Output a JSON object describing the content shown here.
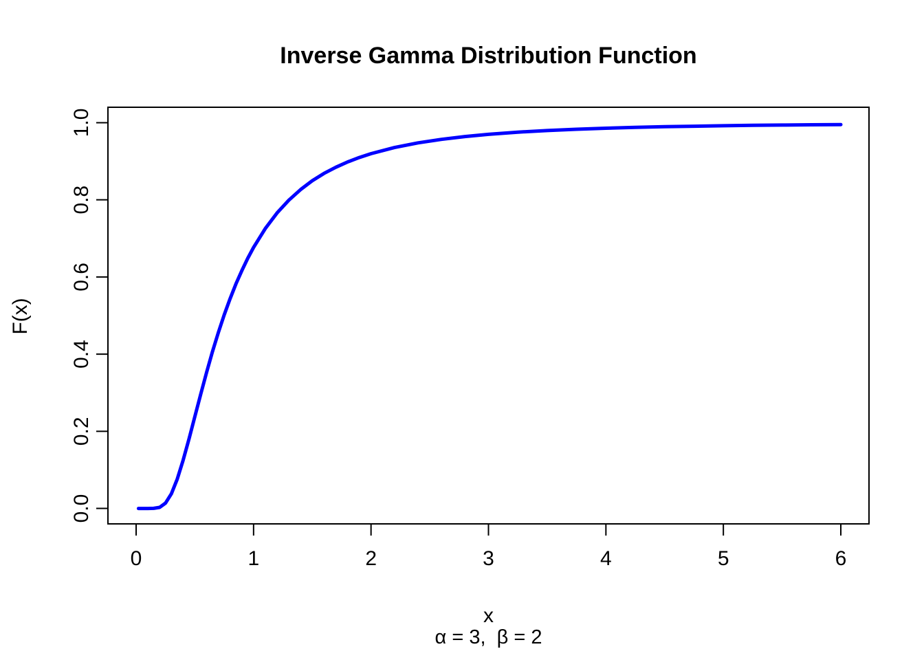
{
  "chart_data": {
    "type": "line",
    "title": "Inverse Gamma Distribution Function",
    "xlabel": "x",
    "ylabel": "F(x)",
    "param_label": "α = 3,  β = 2",
    "alpha": 3,
    "beta": 2,
    "x_ticks": [
      "0",
      "1",
      "2",
      "3",
      "4",
      "5",
      "6"
    ],
    "y_ticks": [
      "0.0",
      "0.2",
      "0.4",
      "0.6",
      "0.8",
      "1.0"
    ],
    "xlim": [
      -0.24,
      6.24
    ],
    "ylim": [
      -0.04,
      1.04
    ],
    "grid": false,
    "legend": false,
    "line_color": "#0000FF",
    "axis_color": "#000000",
    "background_color": "#FFFFFF",
    "points": [
      [
        0.02,
        0.0
      ],
      [
        0.1,
        0.0
      ],
      [
        0.15,
        0.0002
      ],
      [
        0.2,
        0.0028
      ],
      [
        0.25,
        0.0138
      ],
      [
        0.3,
        0.038
      ],
      [
        0.35,
        0.076
      ],
      [
        0.4,
        0.1247
      ],
      [
        0.45,
        0.1799
      ],
      [
        0.5,
        0.2381
      ],
      [
        0.55,
        0.2964
      ],
      [
        0.6,
        0.3528
      ],
      [
        0.65,
        0.4062
      ],
      [
        0.7,
        0.456
      ],
      [
        0.75,
        0.5018
      ],
      [
        0.8,
        0.5438
      ],
      [
        0.85,
        0.5821
      ],
      [
        0.9,
        0.6166
      ],
      [
        0.95,
        0.6482
      ],
      [
        1.0,
        0.6767
      ],
      [
        1.1,
        0.7257
      ],
      [
        1.2,
        0.766
      ],
      [
        1.3,
        0.7991
      ],
      [
        1.4,
        0.8265
      ],
      [
        1.5,
        0.8494
      ],
      [
        1.6,
        0.8685
      ],
      [
        1.7,
        0.8845
      ],
      [
        1.8,
        0.8982
      ],
      [
        1.9,
        0.9098
      ],
      [
        2.0,
        0.9197
      ],
      [
        2.2,
        0.9356
      ],
      [
        2.4,
        0.9477
      ],
      [
        2.6,
        0.9568
      ],
      [
        2.8,
        0.9641
      ],
      [
        3.0,
        0.9697
      ],
      [
        3.25,
        0.9754
      ],
      [
        3.5,
        0.9796
      ],
      [
        3.75,
        0.9829
      ],
      [
        4.0,
        0.9856
      ],
      [
        4.25,
        0.9877
      ],
      [
        4.5,
        0.9895
      ],
      [
        4.75,
        0.9909
      ],
      [
        5.0,
        0.9921
      ],
      [
        5.25,
        0.9931
      ],
      [
        5.5,
        0.9939
      ],
      [
        5.75,
        0.9946
      ],
      [
        6.0,
        0.9951
      ]
    ]
  }
}
